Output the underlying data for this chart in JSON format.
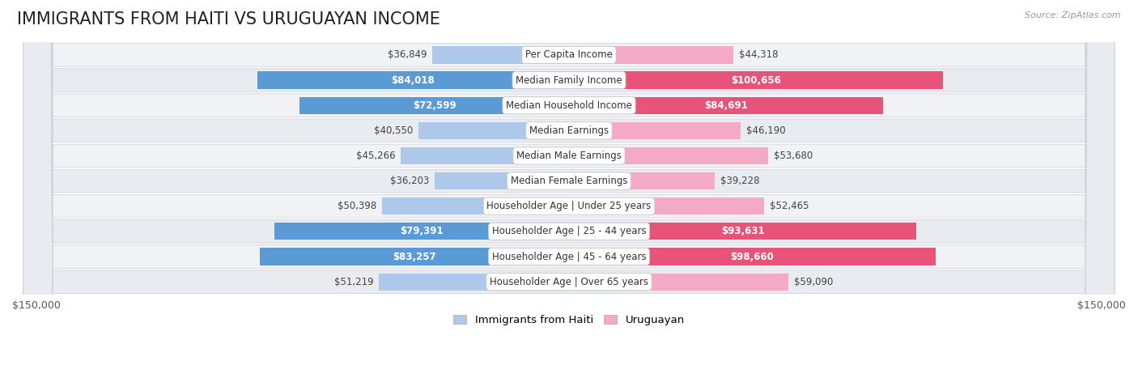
{
  "title": "IMMIGRANTS FROM HAITI VS URUGUAYAN INCOME",
  "source": "Source: ZipAtlas.com",
  "categories": [
    "Per Capita Income",
    "Median Family Income",
    "Median Household Income",
    "Median Earnings",
    "Median Male Earnings",
    "Median Female Earnings",
    "Householder Age | Under 25 years",
    "Householder Age | 25 - 44 years",
    "Householder Age | 45 - 64 years",
    "Householder Age | Over 65 years"
  ],
  "haiti_values": [
    36849,
    84018,
    72599,
    40550,
    45266,
    36203,
    50398,
    79391,
    83257,
    51219
  ],
  "uruguay_values": [
    44318,
    100656,
    84691,
    46190,
    53680,
    39228,
    52465,
    93631,
    98660,
    59090
  ],
  "haiti_labels": [
    "$36,849",
    "$84,018",
    "$72,599",
    "$40,550",
    "$45,266",
    "$36,203",
    "$50,398",
    "$79,391",
    "$83,257",
    "$51,219"
  ],
  "uruguay_labels": [
    "$44,318",
    "$100,656",
    "$84,691",
    "$46,190",
    "$53,680",
    "$39,228",
    "$52,465",
    "$93,631",
    "$98,660",
    "$59,090"
  ],
  "haiti_color_light": "#adc8e8",
  "haiti_color_dark": "#5b9bd5",
  "uruguay_color_light": "#f4aac4",
  "uruguay_color_dark": "#e8537a",
  "haiti_dark_threshold": 65000,
  "uruguay_dark_threshold": 75000,
  "max_value": 150000,
  "axis_label_left": "$150,000",
  "axis_label_right": "$150,000",
  "legend_haiti": "Immigrants from Haiti",
  "legend_uruguay": "Uruguayan",
  "title_fontsize": 15,
  "label_fontsize": 8.5,
  "category_fontsize": 8.5
}
